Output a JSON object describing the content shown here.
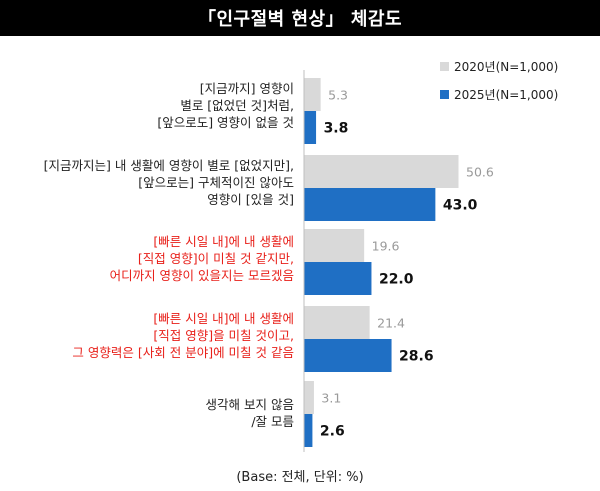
{
  "title": "「인구절벽 현상」 체감도",
  "legend": [
    {
      "label": "2020년(N=1,000)",
      "color": "#d9d9d9"
    },
    {
      "label": "2025년(N=1,000)",
      "color": "#1f6fc4"
    }
  ],
  "note": "(Base: 전체, 단위: %)",
  "chart_data": {
    "type": "bar",
    "orientation": "horizontal",
    "categories": [
      "[지금까지] 영향이 별로 [없었던 것]처럼, [앞으로도] 영향이 없을 것",
      "[지금까지는] 내 생활에 영향이 별로 [없었지만], [앞으로는] 구체적이진 않아도 영향이 [있을 것]",
      "[빠른 시일 내]에 내 생활에 [직접 영향]이 미칠 것 같지만, 어디까지 영향이 있을지는 모르겠음",
      "[빠른 시일 내]에 내 생활에 [직접 영향]을 미칠 것이고, 그 영향력은 [사회 전 분야]에 미칠 것 같음",
      "생각해 보지 않음 /잘 모름"
    ],
    "category_lines": [
      [
        "[지금까지] 영향이",
        "별로 [없었던 것]처럼,",
        "[앞으로도] 영향이 없을 것"
      ],
      [
        "[지금까지는] 내 생활에 영향이 별로 [없었지만],",
        "[앞으로는] 구체적이진 않아도",
        "영향이 [있을 것]"
      ],
      [
        "[빠른 시일 내]에 내 생활에",
        "[직접 영향]이 미칠 것 같지만,",
        "어디까지 영향이 있을지는 모르겠음"
      ],
      [
        "[빠른 시일 내]에 내 생활에",
        "[직접 영향]을 미칠 것이고,",
        "그 영향력은 [사회 전 분야]에 미칠 것 같음"
      ],
      [
        "생각해 보지 않음",
        "/잘 모름"
      ]
    ],
    "category_highlight": [
      false,
      false,
      true,
      true,
      false
    ],
    "series": [
      {
        "name": "2020년(N=1,000)",
        "color": "#d9d9d9",
        "label_color": "#9a9a9a",
        "values": [
          5.3,
          50.6,
          19.6,
          21.4,
          3.1
        ]
      },
      {
        "name": "2025년(N=1,000)",
        "color": "#1f6fc4",
        "label_color": "#111111",
        "values": [
          3.8,
          43.0,
          22.0,
          28.6,
          2.6
        ]
      }
    ],
    "xlim": [
      0,
      55
    ],
    "grid": false
  }
}
